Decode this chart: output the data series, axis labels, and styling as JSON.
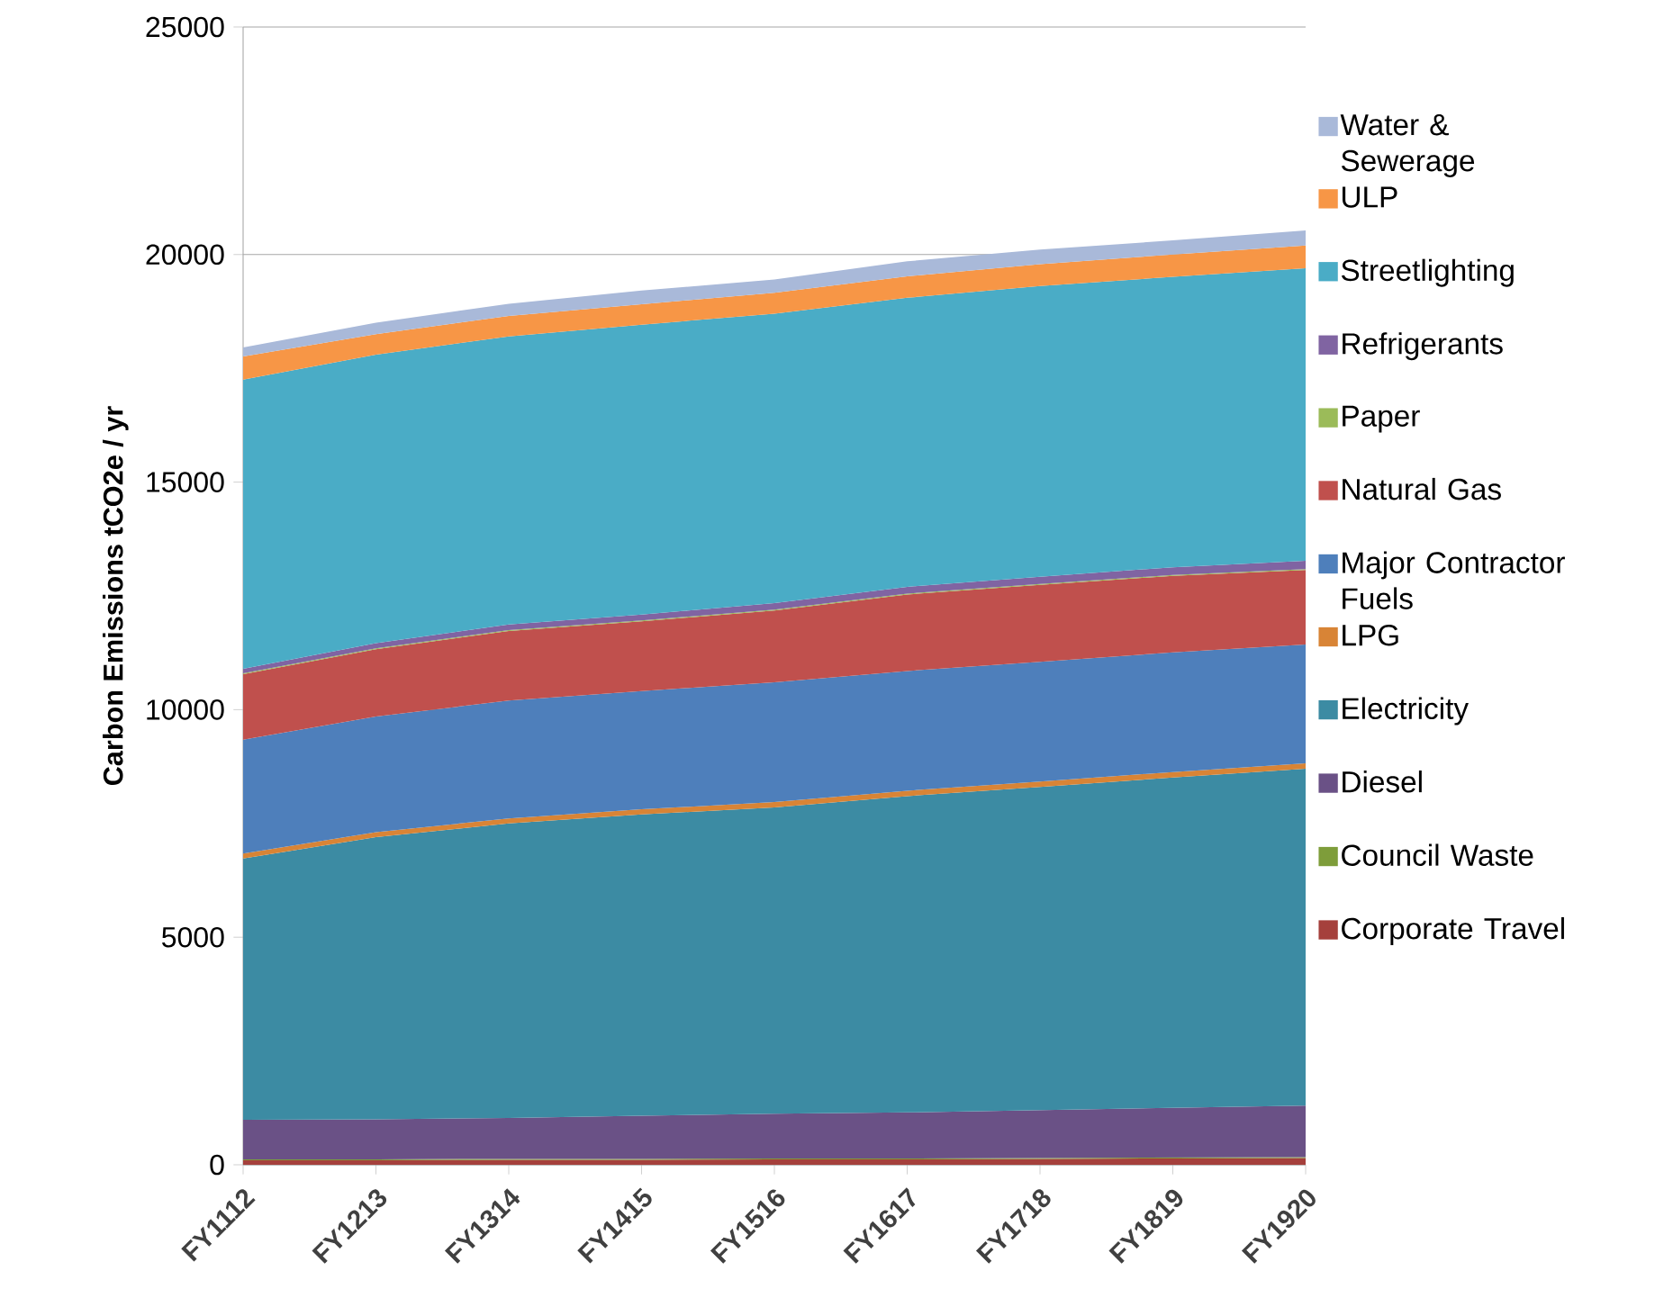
{
  "chart_data": {
    "type": "area",
    "stacked": true,
    "ylabel": "Carbon Emissions tCO2e / yr",
    "categories": [
      "FY1112",
      "FY1213",
      "FY1314",
      "FY1415",
      "FY1516",
      "FY1617",
      "FY1718",
      "FY1819",
      "FY1920"
    ],
    "ylim": [
      0,
      25000
    ],
    "yticks": [
      0,
      5000,
      10000,
      15000,
      20000,
      25000
    ],
    "grid": "y",
    "legend": "right",
    "series": [
      {
        "name": "Corporate Travel",
        "color": "#a5403c",
        "values": [
          100,
          100,
          110,
          110,
          120,
          120,
          130,
          140,
          150
        ]
      },
      {
        "name": "Council Waste",
        "color": "#7e9d3a",
        "values": [
          20,
          20,
          20,
          20,
          20,
          20,
          20,
          20,
          20
        ]
      },
      {
        "name": "Diesel",
        "color": "#6a5186",
        "values": [
          870,
          880,
          900,
          950,
          980,
          1010,
          1050,
          1090,
          1130
        ]
      },
      {
        "name": "Electricity",
        "color": "#3c8ba3",
        "values": [
          5740,
          6200,
          6470,
          6620,
          6730,
          6950,
          7100,
          7260,
          7400
        ]
      },
      {
        "name": "LPG",
        "color": "#d88436",
        "values": [
          110,
          110,
          110,
          110,
          120,
          120,
          120,
          120,
          120
        ]
      },
      {
        "name": "Major Contractor Fuels",
        "color": "#4e7fbb",
        "values": [
          2500,
          2540,
          2590,
          2600,
          2630,
          2630,
          2630,
          2630,
          2610
        ]
      },
      {
        "name": "Natural Gas",
        "color": "#c0504d",
        "values": [
          1440,
          1480,
          1530,
          1530,
          1580,
          1680,
          1690,
          1680,
          1640
        ]
      },
      {
        "name": "Paper",
        "color": "#9bbb59",
        "values": [
          20,
          20,
          20,
          20,
          20,
          20,
          20,
          20,
          20
        ]
      },
      {
        "name": "Refrigerants",
        "color": "#8064a2",
        "values": [
          100,
          110,
          120,
          130,
          140,
          150,
          160,
          170,
          180
        ]
      },
      {
        "name": "Streetlighting",
        "color": "#4aacc6",
        "values": [
          6350,
          6340,
          6330,
          6370,
          6360,
          6350,
          6390,
          6380,
          6430
        ]
      },
      {
        "name": "ULP",
        "color": "#f79646",
        "values": [
          510,
          450,
          450,
          450,
          460,
          470,
          480,
          490,
          500
        ]
      },
      {
        "name": "Water & Sewerage",
        "color": "#a9b9d9",
        "values": [
          200,
          250,
          270,
          300,
          290,
          330,
          320,
          310,
          330
        ]
      }
    ]
  }
}
